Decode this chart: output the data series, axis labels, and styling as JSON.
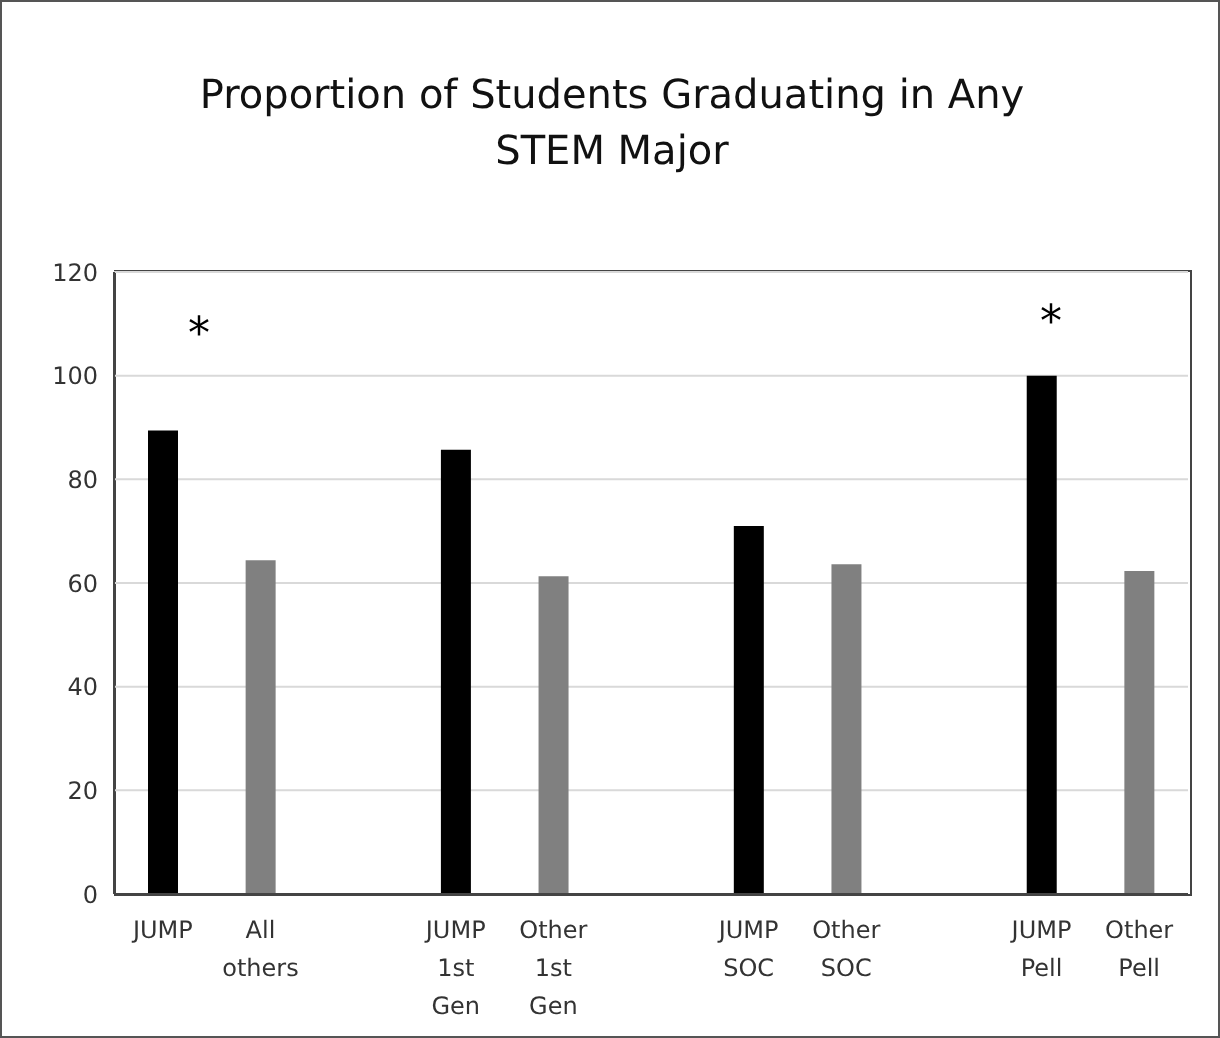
{
  "chart_data": {
    "type": "bar",
    "title": "Proportion of Students Graduating in Any STEM Major",
    "categories": [
      "JUMP",
      "All others",
      null,
      "JUMP 1st Gen",
      "Other 1st Gen",
      null,
      "JUMP SOC",
      "Other SOC",
      null,
      "JUMP Pell",
      "Other Pell"
    ],
    "values": [
      89.4,
      64.4,
      null,
      85.7,
      61.3,
      null,
      71.0,
      63.6,
      null,
      100,
      62.3
    ],
    "colors": [
      "#000000",
      "#808080",
      null,
      "#000000",
      "#808080",
      null,
      "#000000",
      "#808080",
      null,
      "#000000",
      "#808080"
    ],
    "ylim": [
      0,
      120
    ],
    "yticks": [
      0,
      20,
      40,
      60,
      80,
      100,
      120
    ],
    "grid": "y",
    "annotations": [
      "*",
      "*"
    ]
  }
}
